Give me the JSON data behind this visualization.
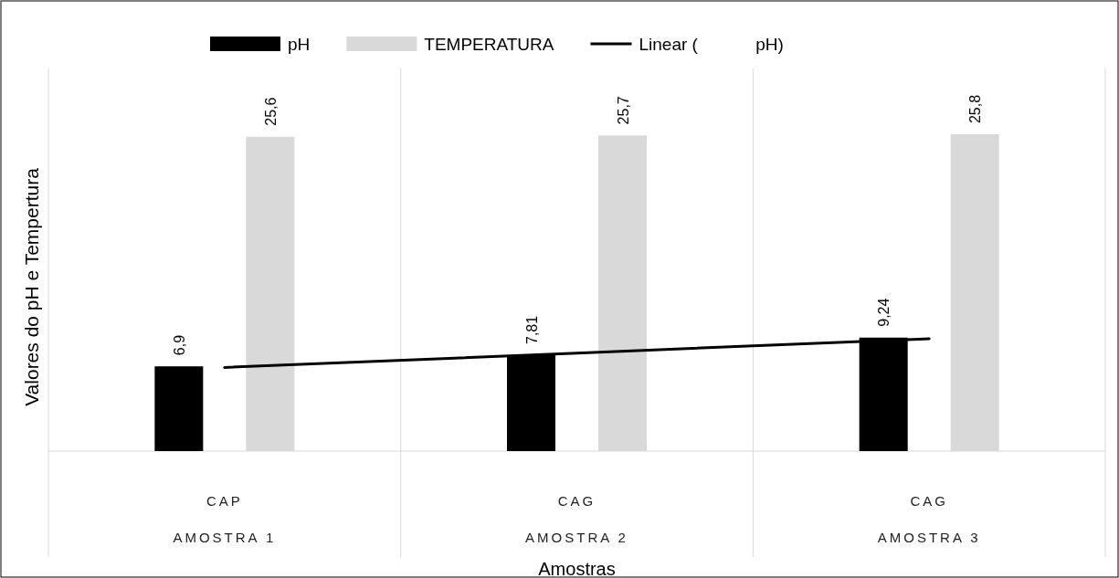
{
  "chart_data": {
    "type": "bar",
    "xlabel": "Amostras",
    "ylabel": "Valores do pH e Tempertura",
    "categories": [
      "CAP",
      "CAG",
      "CAG"
    ],
    "annotations": [
      "AMOSTRA 1",
      "AMOSTRA 2",
      "AMOSTRA 3"
    ],
    "series": [
      {
        "name": "pH",
        "color": "#000000",
        "values": [
          6.9,
          7.81,
          9.24
        ],
        "value_labels": [
          "6,9",
          "7,81",
          "9,24"
        ]
      },
      {
        "name": "TEMPERATURA",
        "color": "#d9d9d9",
        "values": [
          25.6,
          25.7,
          25.8
        ],
        "value_labels": [
          "25,6",
          "25,7",
          "25,8"
        ]
      },
      {
        "name": "Linear (            pH)",
        "type": "line",
        "color": "#000000",
        "values": [
          6.81,
          7.98,
          9.15
        ]
      }
    ],
    "grid": "x",
    "legend": "top"
  }
}
